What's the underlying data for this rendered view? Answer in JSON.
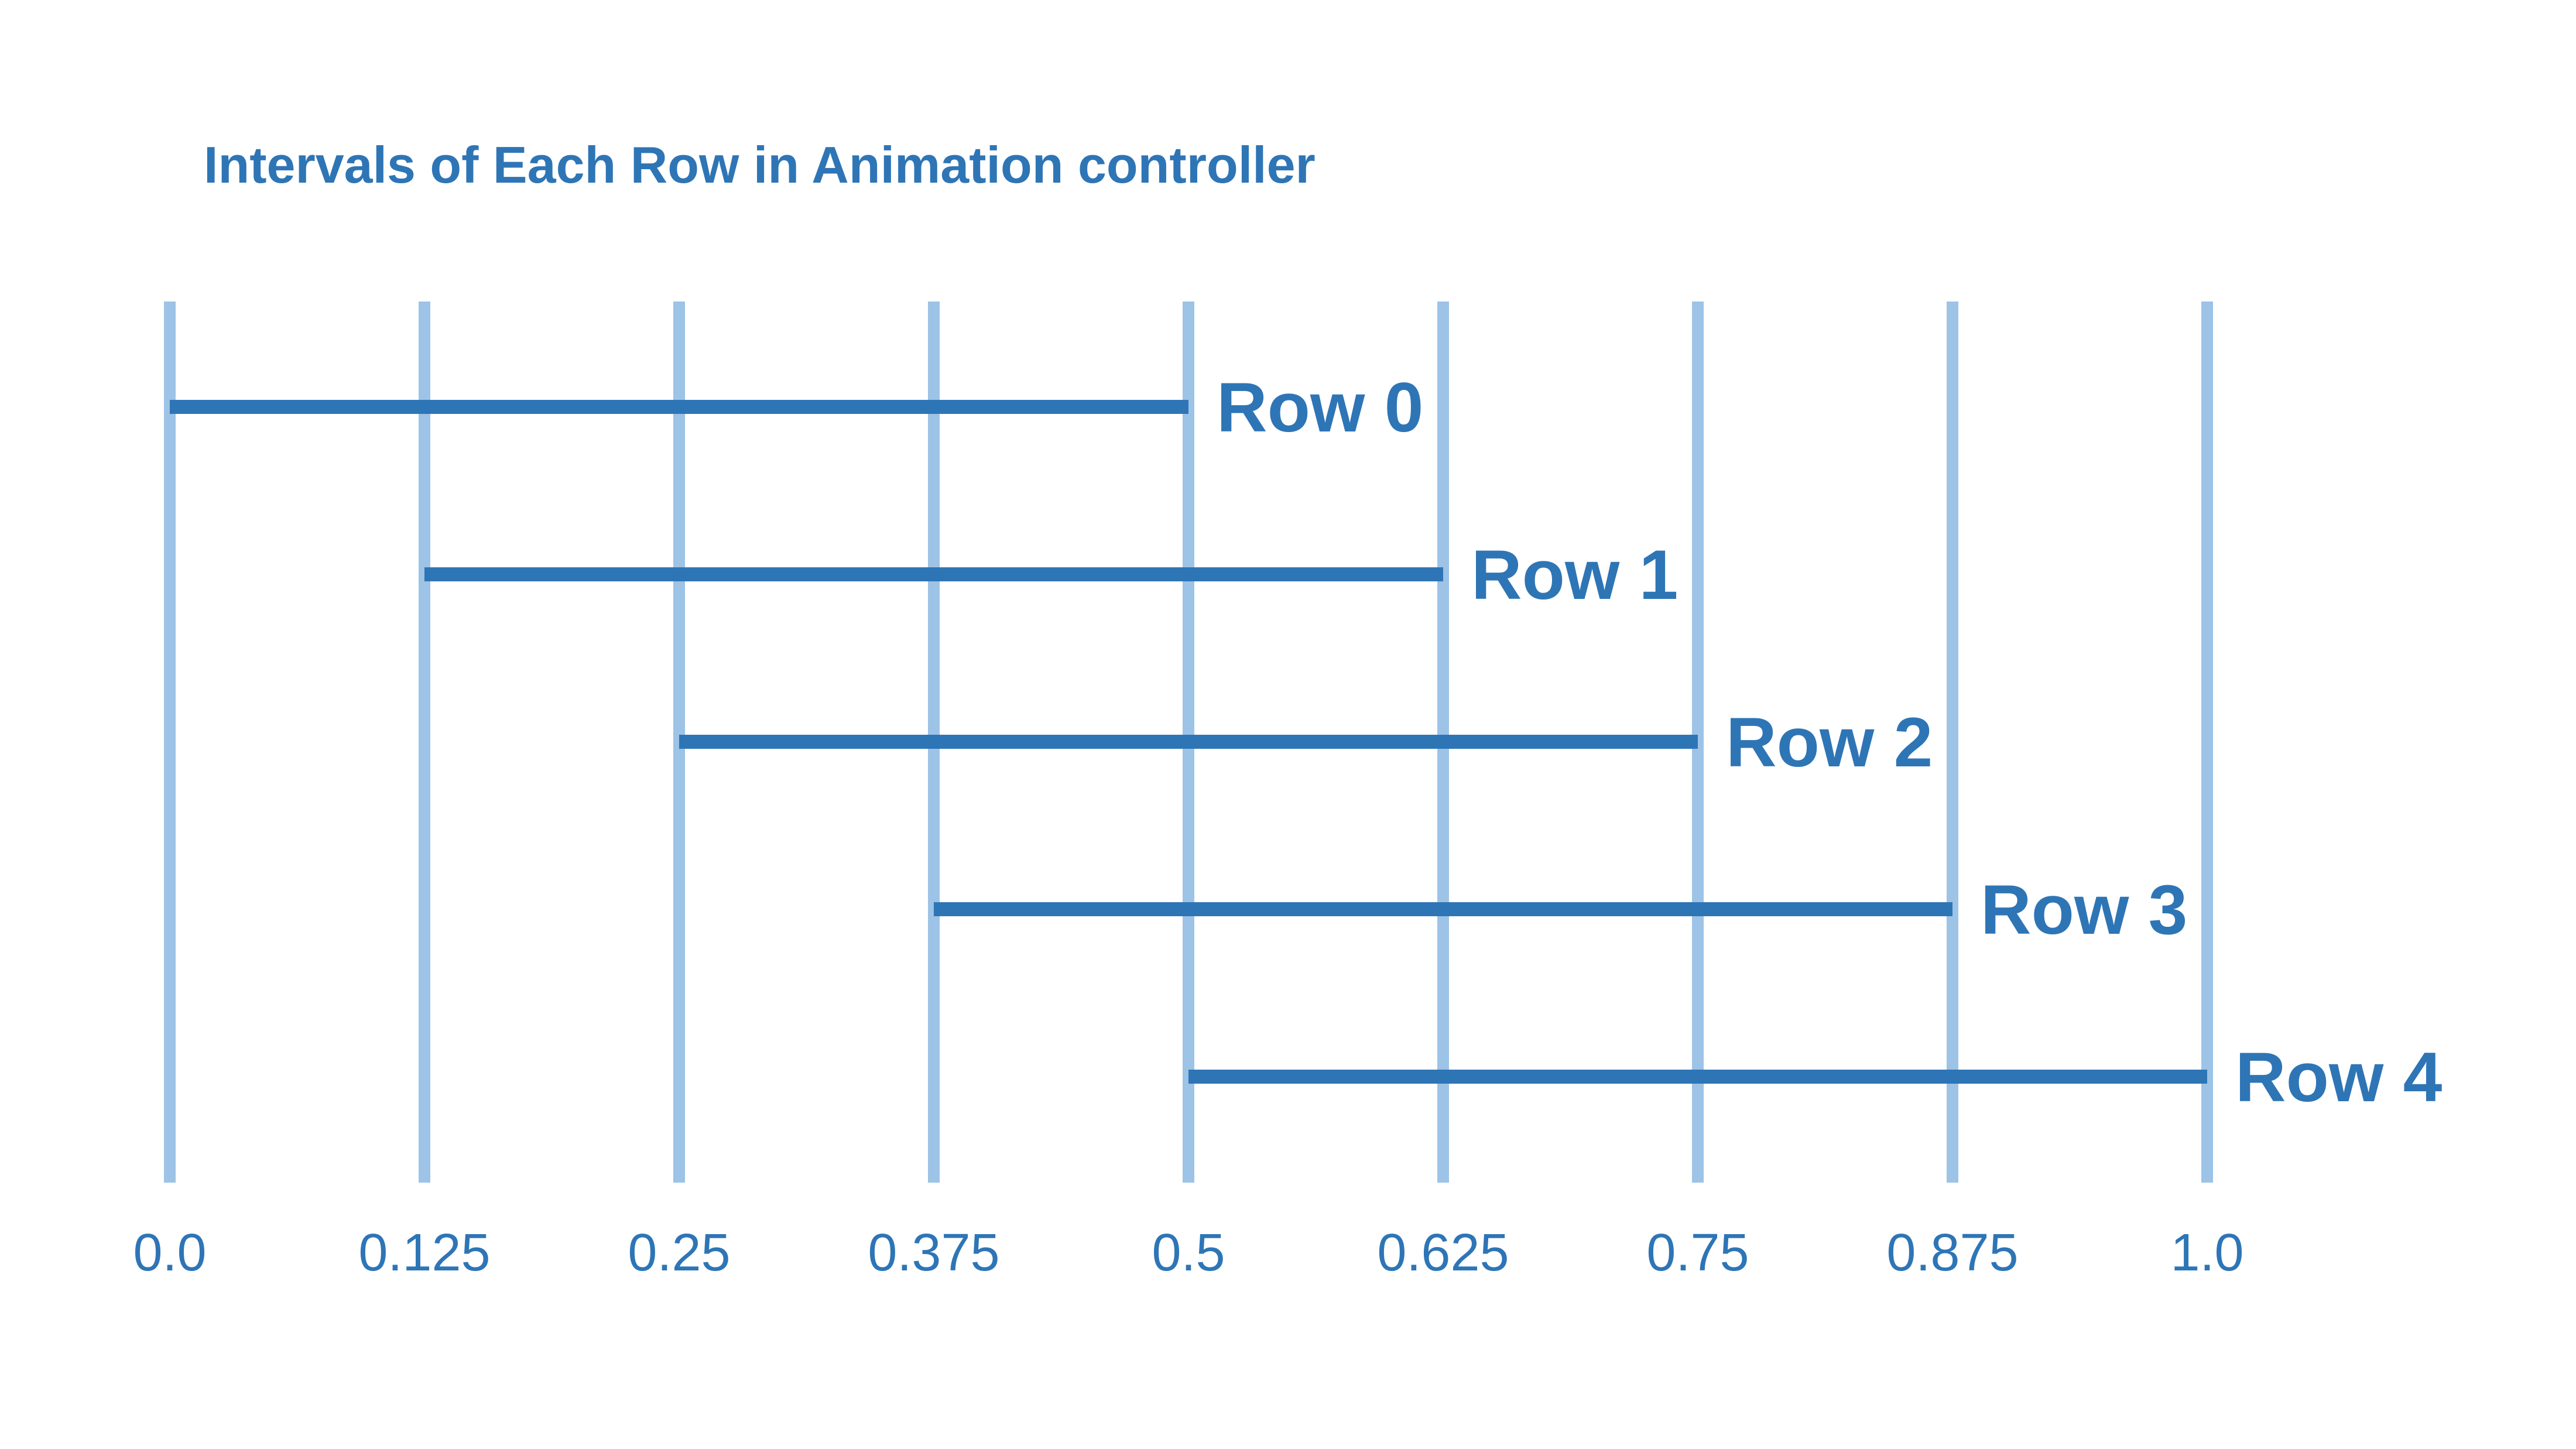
{
  "chart_data": {
    "type": "interval",
    "title": "Intervals of Each Row in Animation controller",
    "x_ticks": [
      "0.0",
      "0.125",
      "0.25",
      "0.375",
      "0.5",
      "0.625",
      "0.75",
      "0.875",
      "1.0"
    ],
    "x_tick_values": [
      0,
      0.125,
      0.25,
      0.375,
      0.5,
      0.625,
      0.75,
      0.875,
      1.0
    ],
    "xlim": [
      0,
      1.0
    ],
    "grid": true,
    "intervals": [
      {
        "label": "Row 0",
        "start": 0.0,
        "end": 0.5
      },
      {
        "label": "Row 1",
        "start": 0.125,
        "end": 0.625
      },
      {
        "label": "Row 2",
        "start": 0.25,
        "end": 0.75
      },
      {
        "label": "Row 3",
        "start": 0.375,
        "end": 0.875
      },
      {
        "label": "Row 4",
        "start": 0.5,
        "end": 1.0
      }
    ],
    "colors": {
      "accent": "#2E75B6",
      "grid": "#9DC3E6"
    }
  }
}
